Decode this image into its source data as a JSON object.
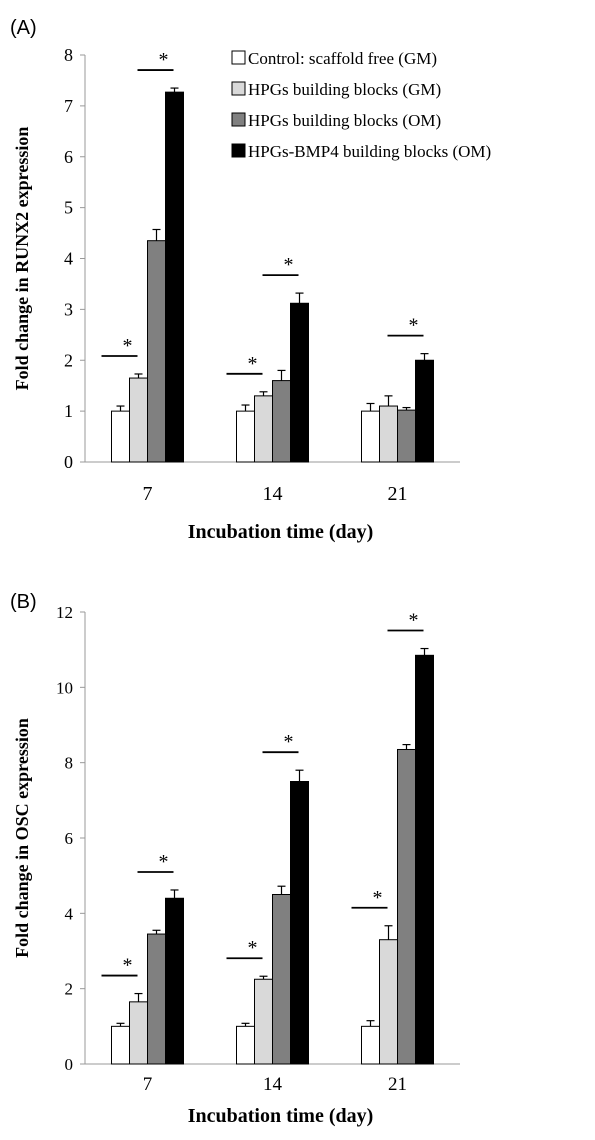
{
  "figure": {
    "legend": [
      {
        "label": "Control: scaffold free (GM)",
        "color": "#ffffff"
      },
      {
        "label": "HPGs building blocks (GM)",
        "color": "#d9d9d9"
      },
      {
        "label": "HPGs building blocks (OM)",
        "color": "#808080"
      },
      {
        "label": "HPGs-BMP4 building blocks (OM)",
        "color": "#000000"
      }
    ],
    "significance_mark": "*"
  },
  "chart_data": [
    {
      "panel_label": "(A)",
      "type": "bar",
      "ylabel": "Fold change in RUNX2 expression",
      "xlabel": "Incubation time (day)",
      "categories": [
        "7",
        "14",
        "21"
      ],
      "ylim": [
        0,
        8
      ],
      "yticks": [
        "0",
        "1",
        "2",
        "3",
        "4",
        "5",
        "6",
        "7",
        "8"
      ],
      "series": [
        {
          "values": [
            1.0,
            1.0,
            1.0
          ],
          "errors": [
            0.1,
            0.12,
            0.15
          ]
        },
        {
          "values": [
            1.65,
            1.3,
            1.1
          ],
          "errors": [
            0.08,
            0.08,
            0.2
          ]
        },
        {
          "values": [
            4.35,
            1.6,
            1.02
          ],
          "errors": [
            0.22,
            0.2,
            0.05
          ]
        },
        {
          "values": [
            7.27,
            3.12,
            2.0
          ],
          "errors": [
            0.08,
            0.2,
            0.13
          ]
        }
      ],
      "significance": [
        {
          "category": 0,
          "series": 1
        },
        {
          "category": 0,
          "series": 3
        },
        {
          "category": 1,
          "series": 1
        },
        {
          "category": 1,
          "series": 3
        },
        {
          "category": 2,
          "series": 3
        }
      ]
    },
    {
      "panel_label": "(B)",
      "type": "bar",
      "ylabel": "Fold change in OSC expression",
      "xlabel": "Incubation time (day)",
      "categories": [
        "7",
        "14",
        "21"
      ],
      "ylim": [
        0,
        12
      ],
      "yticks": [
        "0",
        "2",
        "4",
        "6",
        "8",
        "10",
        "12"
      ],
      "series": [
        {
          "values": [
            1.0,
            1.0,
            1.0
          ],
          "errors": [
            0.08,
            0.08,
            0.15
          ]
        },
        {
          "values": [
            1.65,
            2.25,
            3.3
          ],
          "errors": [
            0.22,
            0.08,
            0.37
          ]
        },
        {
          "values": [
            3.45,
            4.5,
            8.35
          ],
          "errors": [
            0.1,
            0.22,
            0.13
          ]
        },
        {
          "values": [
            4.4,
            7.5,
            10.85
          ],
          "errors": [
            0.22,
            0.3,
            0.18
          ]
        }
      ],
      "significance": [
        {
          "category": 0,
          "series": 1
        },
        {
          "category": 0,
          "series": 3
        },
        {
          "category": 1,
          "series": 1
        },
        {
          "category": 1,
          "series": 3
        },
        {
          "category": 2,
          "series": 1
        },
        {
          "category": 2,
          "series": 3
        }
      ]
    }
  ]
}
